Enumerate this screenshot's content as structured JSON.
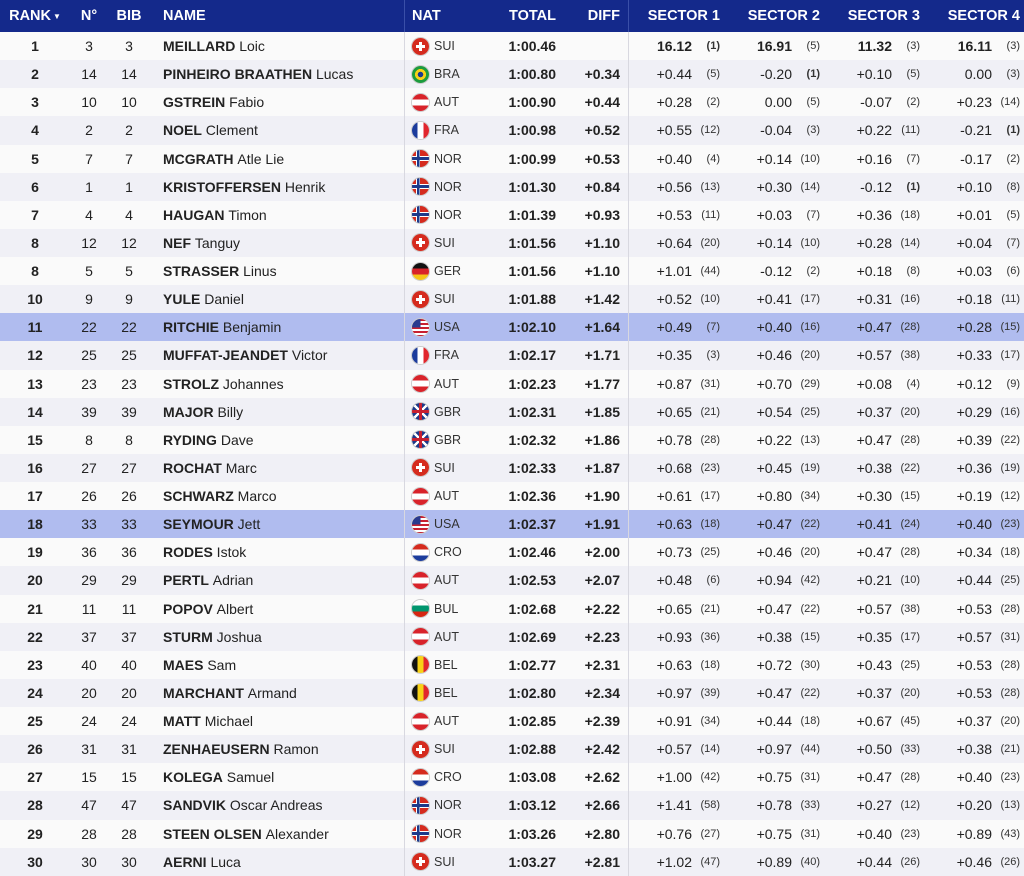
{
  "header": {
    "rank": "RANK",
    "sort_indicator": "▼",
    "no": "N°",
    "bib": "BIB",
    "name": "NAME",
    "nat": "NAT",
    "total": "TOTAL",
    "diff": "DIFF",
    "sectors": [
      "SECTOR 1",
      "SECTOR 2",
      "SECTOR 3",
      "SECTOR 4"
    ]
  },
  "colors": {
    "header_bg": "#14298b",
    "highlight_row": "#b0bcef"
  },
  "highlighted_nation": "USA",
  "rows": [
    {
      "rank": "1",
      "no": "3",
      "bib": "3",
      "last": "MEILLARD",
      "first": "Loic",
      "nat": "SUI",
      "total": "1:00.46",
      "diff": "",
      "s": [
        [
          "16.12",
          "(1)"
        ],
        [
          "16.91",
          "(5)"
        ],
        [
          "11.32",
          "(3)"
        ],
        [
          "16.11",
          "(3)"
        ]
      ]
    },
    {
      "rank": "2",
      "no": "14",
      "bib": "14",
      "last": "PINHEIRO BRAATHEN",
      "first": "Lucas",
      "nat": "BRA",
      "total": "1:00.80",
      "diff": "+0.34",
      "s": [
        [
          "+0.44",
          "(5)"
        ],
        [
          "-0.20",
          "(1)"
        ],
        [
          "+0.10",
          "(5)"
        ],
        [
          "0.00",
          "(3)"
        ]
      ]
    },
    {
      "rank": "3",
      "no": "10",
      "bib": "10",
      "last": "GSTREIN",
      "first": "Fabio",
      "nat": "AUT",
      "total": "1:00.90",
      "diff": "+0.44",
      "s": [
        [
          "+0.28",
          "(2)"
        ],
        [
          "0.00",
          "(5)"
        ],
        [
          "-0.07",
          "(2)"
        ],
        [
          "+0.23",
          "(14)"
        ]
      ]
    },
    {
      "rank": "4",
      "no": "2",
      "bib": "2",
      "last": "NOEL",
      "first": "Clement",
      "nat": "FRA",
      "total": "1:00.98",
      "diff": "+0.52",
      "s": [
        [
          "+0.55",
          "(12)"
        ],
        [
          "-0.04",
          "(3)"
        ],
        [
          "+0.22",
          "(11)"
        ],
        [
          "-0.21",
          "(1)"
        ]
      ]
    },
    {
      "rank": "5",
      "no": "7",
      "bib": "7",
      "last": "MCGRATH",
      "first": "Atle Lie",
      "nat": "NOR",
      "total": "1:00.99",
      "diff": "+0.53",
      "s": [
        [
          "+0.40",
          "(4)"
        ],
        [
          "+0.14",
          "(10)"
        ],
        [
          "+0.16",
          "(7)"
        ],
        [
          "-0.17",
          "(2)"
        ]
      ]
    },
    {
      "rank": "6",
      "no": "1",
      "bib": "1",
      "last": "KRISTOFFERSEN",
      "first": "Henrik",
      "nat": "NOR",
      "total": "1:01.30",
      "diff": "+0.84",
      "s": [
        [
          "+0.56",
          "(13)"
        ],
        [
          "+0.30",
          "(14)"
        ],
        [
          "-0.12",
          "(1)"
        ],
        [
          "+0.10",
          "(8)"
        ]
      ]
    },
    {
      "rank": "7",
      "no": "4",
      "bib": "4",
      "last": "HAUGAN",
      "first": "Timon",
      "nat": "NOR",
      "total": "1:01.39",
      "diff": "+0.93",
      "s": [
        [
          "+0.53",
          "(11)"
        ],
        [
          "+0.03",
          "(7)"
        ],
        [
          "+0.36",
          "(18)"
        ],
        [
          "+0.01",
          "(5)"
        ]
      ]
    },
    {
      "rank": "8",
      "no": "12",
      "bib": "12",
      "last": "NEF",
      "first": "Tanguy",
      "nat": "SUI",
      "total": "1:01.56",
      "diff": "+1.10",
      "s": [
        [
          "+0.64",
          "(20)"
        ],
        [
          "+0.14",
          "(10)"
        ],
        [
          "+0.28",
          "(14)"
        ],
        [
          "+0.04",
          "(7)"
        ]
      ]
    },
    {
      "rank": "8",
      "no": "5",
      "bib": "5",
      "last": "STRASSER",
      "first": "Linus",
      "nat": "GER",
      "total": "1:01.56",
      "diff": "+1.10",
      "s": [
        [
          "+1.01",
          "(44)"
        ],
        [
          "-0.12",
          "(2)"
        ],
        [
          "+0.18",
          "(8)"
        ],
        [
          "+0.03",
          "(6)"
        ]
      ]
    },
    {
      "rank": "10",
      "no": "9",
      "bib": "9",
      "last": "YULE",
      "first": "Daniel",
      "nat": "SUI",
      "total": "1:01.88",
      "diff": "+1.42",
      "s": [
        [
          "+0.52",
          "(10)"
        ],
        [
          "+0.41",
          "(17)"
        ],
        [
          "+0.31",
          "(16)"
        ],
        [
          "+0.18",
          "(11)"
        ]
      ]
    },
    {
      "rank": "11",
      "no": "22",
      "bib": "22",
      "last": "RITCHIE",
      "first": "Benjamin",
      "nat": "USA",
      "total": "1:02.10",
      "diff": "+1.64",
      "s": [
        [
          "+0.49",
          "(7)"
        ],
        [
          "+0.40",
          "(16)"
        ],
        [
          "+0.47",
          "(28)"
        ],
        [
          "+0.28",
          "(15)"
        ]
      ]
    },
    {
      "rank": "12",
      "no": "25",
      "bib": "25",
      "last": "MUFFAT-JEANDET",
      "first": "Victor",
      "nat": "FRA",
      "total": "1:02.17",
      "diff": "+1.71",
      "s": [
        [
          "+0.35",
          "(3)"
        ],
        [
          "+0.46",
          "(20)"
        ],
        [
          "+0.57",
          "(38)"
        ],
        [
          "+0.33",
          "(17)"
        ]
      ]
    },
    {
      "rank": "13",
      "no": "23",
      "bib": "23",
      "last": "STROLZ",
      "first": "Johannes",
      "nat": "AUT",
      "total": "1:02.23",
      "diff": "+1.77",
      "s": [
        [
          "+0.87",
          "(31)"
        ],
        [
          "+0.70",
          "(29)"
        ],
        [
          "+0.08",
          "(4)"
        ],
        [
          "+0.12",
          "(9)"
        ]
      ]
    },
    {
      "rank": "14",
      "no": "39",
      "bib": "39",
      "last": "MAJOR",
      "first": "Billy",
      "nat": "GBR",
      "total": "1:02.31",
      "diff": "+1.85",
      "s": [
        [
          "+0.65",
          "(21)"
        ],
        [
          "+0.54",
          "(25)"
        ],
        [
          "+0.37",
          "(20)"
        ],
        [
          "+0.29",
          "(16)"
        ]
      ]
    },
    {
      "rank": "15",
      "no": "8",
      "bib": "8",
      "last": "RYDING",
      "first": "Dave",
      "nat": "GBR",
      "total": "1:02.32",
      "diff": "+1.86",
      "s": [
        [
          "+0.78",
          "(28)"
        ],
        [
          "+0.22",
          "(13)"
        ],
        [
          "+0.47",
          "(28)"
        ],
        [
          "+0.39",
          "(22)"
        ]
      ]
    },
    {
      "rank": "16",
      "no": "27",
      "bib": "27",
      "last": "ROCHAT",
      "first": "Marc",
      "nat": "SUI",
      "total": "1:02.33",
      "diff": "+1.87",
      "s": [
        [
          "+0.68",
          "(23)"
        ],
        [
          "+0.45",
          "(19)"
        ],
        [
          "+0.38",
          "(22)"
        ],
        [
          "+0.36",
          "(19)"
        ]
      ]
    },
    {
      "rank": "17",
      "no": "26",
      "bib": "26",
      "last": "SCHWARZ",
      "first": "Marco",
      "nat": "AUT",
      "total": "1:02.36",
      "diff": "+1.90",
      "s": [
        [
          "+0.61",
          "(17)"
        ],
        [
          "+0.80",
          "(34)"
        ],
        [
          "+0.30",
          "(15)"
        ],
        [
          "+0.19",
          "(12)"
        ]
      ]
    },
    {
      "rank": "18",
      "no": "33",
      "bib": "33",
      "last": "SEYMOUR",
      "first": "Jett",
      "nat": "USA",
      "total": "1:02.37",
      "diff": "+1.91",
      "s": [
        [
          "+0.63",
          "(18)"
        ],
        [
          "+0.47",
          "(22)"
        ],
        [
          "+0.41",
          "(24)"
        ],
        [
          "+0.40",
          "(23)"
        ]
      ]
    },
    {
      "rank": "19",
      "no": "36",
      "bib": "36",
      "last": "RODES",
      "first": "Istok",
      "nat": "CRO",
      "total": "1:02.46",
      "diff": "+2.00",
      "s": [
        [
          "+0.73",
          "(25)"
        ],
        [
          "+0.46",
          "(20)"
        ],
        [
          "+0.47",
          "(28)"
        ],
        [
          "+0.34",
          "(18)"
        ]
      ]
    },
    {
      "rank": "20",
      "no": "29",
      "bib": "29",
      "last": "PERTL",
      "first": "Adrian",
      "nat": "AUT",
      "total": "1:02.53",
      "diff": "+2.07",
      "s": [
        [
          "+0.48",
          "(6)"
        ],
        [
          "+0.94",
          "(42)"
        ],
        [
          "+0.21",
          "(10)"
        ],
        [
          "+0.44",
          "(25)"
        ]
      ]
    },
    {
      "rank": "21",
      "no": "11",
      "bib": "11",
      "last": "POPOV",
      "first": "Albert",
      "nat": "BUL",
      "total": "1:02.68",
      "diff": "+2.22",
      "s": [
        [
          "+0.65",
          "(21)"
        ],
        [
          "+0.47",
          "(22)"
        ],
        [
          "+0.57",
          "(38)"
        ],
        [
          "+0.53",
          "(28)"
        ]
      ]
    },
    {
      "rank": "22",
      "no": "37",
      "bib": "37",
      "last": "STURM",
      "first": "Joshua",
      "nat": "AUT",
      "total": "1:02.69",
      "diff": "+2.23",
      "s": [
        [
          "+0.93",
          "(36)"
        ],
        [
          "+0.38",
          "(15)"
        ],
        [
          "+0.35",
          "(17)"
        ],
        [
          "+0.57",
          "(31)"
        ]
      ]
    },
    {
      "rank": "23",
      "no": "40",
      "bib": "40",
      "last": "MAES",
      "first": "Sam",
      "nat": "BEL",
      "total": "1:02.77",
      "diff": "+2.31",
      "s": [
        [
          "+0.63",
          "(18)"
        ],
        [
          "+0.72",
          "(30)"
        ],
        [
          "+0.43",
          "(25)"
        ],
        [
          "+0.53",
          "(28)"
        ]
      ]
    },
    {
      "rank": "24",
      "no": "20",
      "bib": "20",
      "last": "MARCHANT",
      "first": "Armand",
      "nat": "BEL",
      "total": "1:02.80",
      "diff": "+2.34",
      "s": [
        [
          "+0.97",
          "(39)"
        ],
        [
          "+0.47",
          "(22)"
        ],
        [
          "+0.37",
          "(20)"
        ],
        [
          "+0.53",
          "(28)"
        ]
      ]
    },
    {
      "rank": "25",
      "no": "24",
      "bib": "24",
      "last": "MATT",
      "first": "Michael",
      "nat": "AUT",
      "total": "1:02.85",
      "diff": "+2.39",
      "s": [
        [
          "+0.91",
          "(34)"
        ],
        [
          "+0.44",
          "(18)"
        ],
        [
          "+0.67",
          "(45)"
        ],
        [
          "+0.37",
          "(20)"
        ]
      ]
    },
    {
      "rank": "26",
      "no": "31",
      "bib": "31",
      "last": "ZENHAEUSERN",
      "first": "Ramon",
      "nat": "SUI",
      "total": "1:02.88",
      "diff": "+2.42",
      "s": [
        [
          "+0.57",
          "(14)"
        ],
        [
          "+0.97",
          "(44)"
        ],
        [
          "+0.50",
          "(33)"
        ],
        [
          "+0.38",
          "(21)"
        ]
      ]
    },
    {
      "rank": "27",
      "no": "15",
      "bib": "15",
      "last": "KOLEGA",
      "first": "Samuel",
      "nat": "CRO",
      "total": "1:03.08",
      "diff": "+2.62",
      "s": [
        [
          "+1.00",
          "(42)"
        ],
        [
          "+0.75",
          "(31)"
        ],
        [
          "+0.47",
          "(28)"
        ],
        [
          "+0.40",
          "(23)"
        ]
      ]
    },
    {
      "rank": "28",
      "no": "47",
      "bib": "47",
      "last": "SANDVIK",
      "first": "Oscar Andreas",
      "nat": "NOR",
      "total": "1:03.12",
      "diff": "+2.66",
      "s": [
        [
          "+1.41",
          "(58)"
        ],
        [
          "+0.78",
          "(33)"
        ],
        [
          "+0.27",
          "(12)"
        ],
        [
          "+0.20",
          "(13)"
        ]
      ]
    },
    {
      "rank": "29",
      "no": "28",
      "bib": "28",
      "last": "STEEN OLSEN",
      "first": "Alexander",
      "nat": "NOR",
      "total": "1:03.26",
      "diff": "+2.80",
      "s": [
        [
          "+0.76",
          "(27)"
        ],
        [
          "+0.75",
          "(31)"
        ],
        [
          "+0.40",
          "(23)"
        ],
        [
          "+0.89",
          "(43)"
        ]
      ]
    },
    {
      "rank": "30",
      "no": "30",
      "bib": "30",
      "last": "AERNI",
      "first": "Luca",
      "nat": "SUI",
      "total": "1:03.27",
      "diff": "+2.81",
      "s": [
        [
          "+1.02",
          "(47)"
        ],
        [
          "+0.89",
          "(40)"
        ],
        [
          "+0.44",
          "(26)"
        ],
        [
          "+0.46",
          "(26)"
        ]
      ]
    }
  ]
}
